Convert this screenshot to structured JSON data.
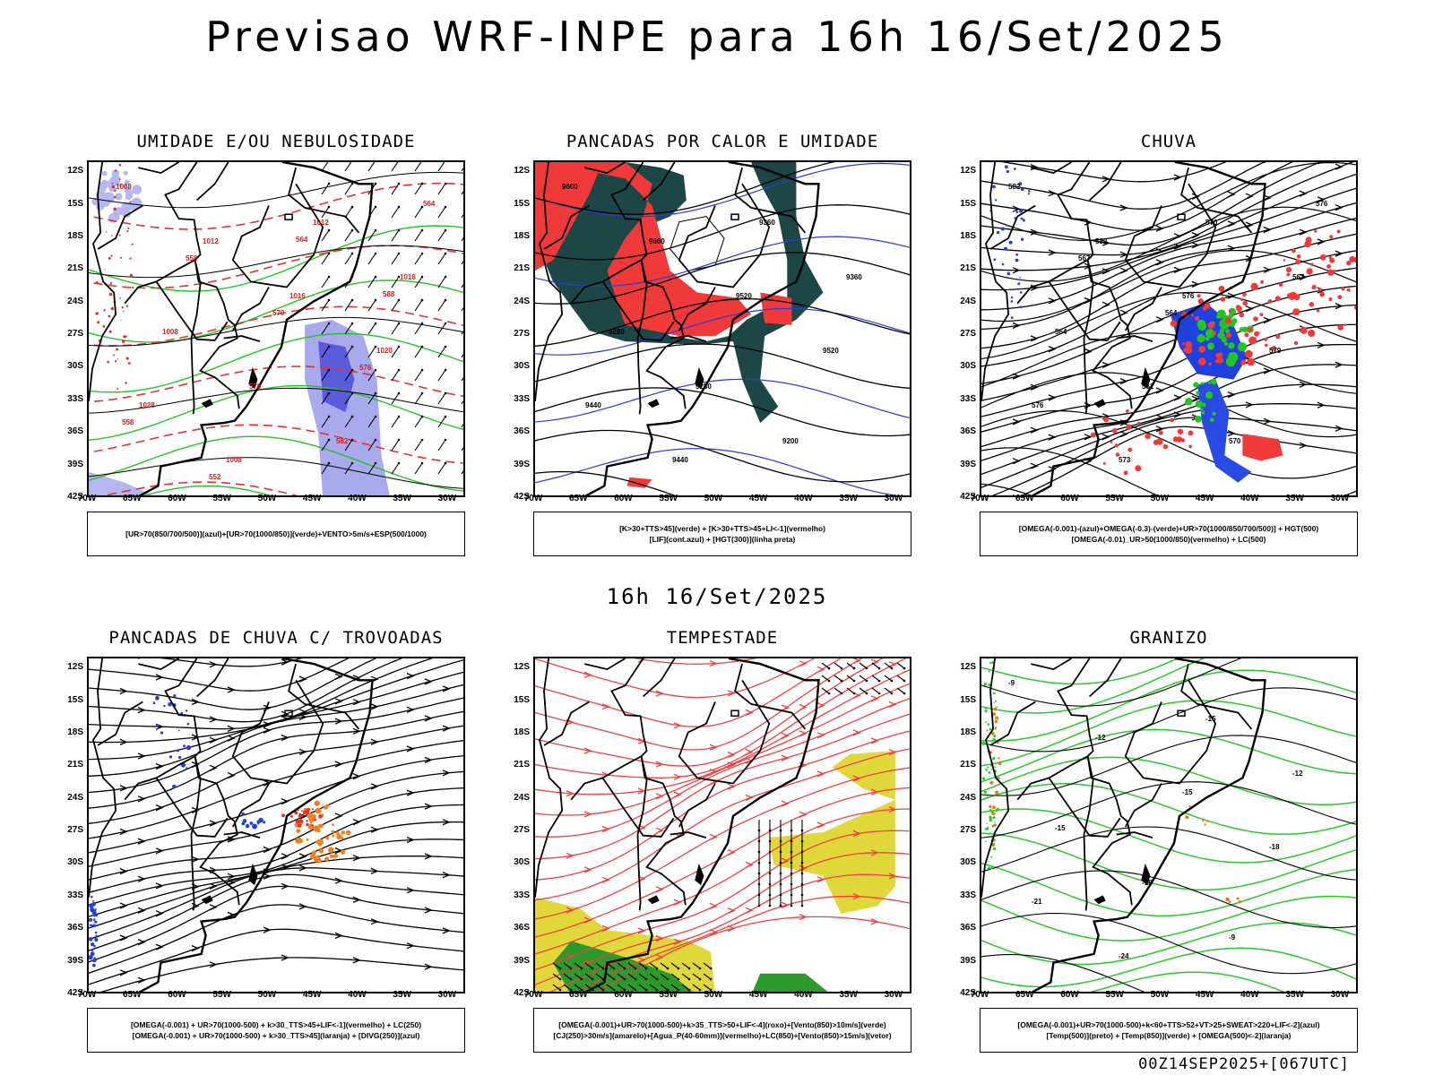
{
  "title": "Previsao WRF-INPE  para 16h 16/Set/2025",
  "mid_time": "16h 16/Set/2025",
  "footer": "00Z14SEP2025+[067UTC]",
  "lat_ticks": [
    "12S",
    "15S",
    "18S",
    "21S",
    "24S",
    "27S",
    "30S",
    "33S",
    "36S",
    "39S",
    "42S"
  ],
  "lon_ticks": [
    "70W",
    "65W",
    "60W",
    "55W",
    "50W",
    "45W",
    "40W",
    "35W",
    "30W"
  ],
  "panels": [
    {
      "title": "UMIDADE E/OU NEBULOSIDADE",
      "legend": [
        "[UR>70(850/700/500)](azul)+[UR>70(1000/850)](verde)+VENTO>5m/s+ESP(500/1000)"
      ],
      "contour_labels": [
        "1008",
        "1012",
        "1016",
        "1020",
        "1028",
        "1008",
        "1012",
        "1016",
        "1008",
        "576",
        "582",
        "564",
        "558",
        "570",
        "576",
        "558",
        "552",
        "564",
        "588"
      ]
    },
    {
      "title": "PANCADAS POR CALOR E UMIDADE",
      "legend": [
        "[K>30+TTS>45](verde) + [K>30+TTS>45+LI<-1](vermelho)",
        "[LIF](cont.azul) + [HGT(300)](linha preta)"
      ],
      "contour_labels": [
        "9600",
        "9600",
        "9520",
        "9520",
        "9440",
        "9440",
        "9360",
        "9360",
        "9280",
        "9280",
        "9200"
      ]
    },
    {
      "title": "CHUVA",
      "legend": [
        "[OMEGA(-0.001)-(azul)+OMEGA(-0.3)-(verde)+UR>70(1000/850/700/500)] + HGT(500)",
        "[OMEGA(-0.01)_UR>50(1000/850)(vermelho) + LC(500)"
      ],
      "contour_labels": [
        "582",
        "582",
        "576",
        "579",
        "576",
        "573",
        "570",
        "567",
        "564",
        "561",
        "570",
        "576",
        "567",
        "564"
      ]
    },
    {
      "title": "PANCADAS DE CHUVA C/ TROVOADAS",
      "legend": [
        "[OMEGA(-0.001) + UR>70(1000-500) + k>30_TTS>45+LIF<-1](vermelho) + LC(250)",
        "[OMEGA(-0.001) + UR>70(1000-500) + k>30_TTS>45](laranja) + [DIVG(250)](azul)"
      ],
      "contour_labels": []
    },
    {
      "title": "TEMPESTADE",
      "legend": [
        "[OMEGA(-0.001)+UR>70(1000-500)+k>35_TTS>50+LIF<-4](roxo)+[Vento(850)>10m/s](verde)",
        "[CJ(250)>30m/s](amarelo)+[Agua_P(40-60mm)](vermelho)+LC(850)+[Vento(850)>15m/s](vetor)"
      ],
      "contour_labels": []
    },
    {
      "title": "GRANIZO",
      "legend": [
        "[OMEGA(-0.001)+UR>70(1000-500)+k<60+TTS>52+VT>25+SWEAT>220+LIF<-2](azul)",
        "[Temp(500)](preto) + [Temp(850)](verde) + [OMEGA(500)<-2](laranja)"
      ],
      "contour_labels": [
        "-9",
        "-12",
        "-15",
        "-18",
        "-21",
        "-24",
        "-15",
        "-12",
        "-15",
        "-18",
        "-9"
      ]
    }
  ]
}
